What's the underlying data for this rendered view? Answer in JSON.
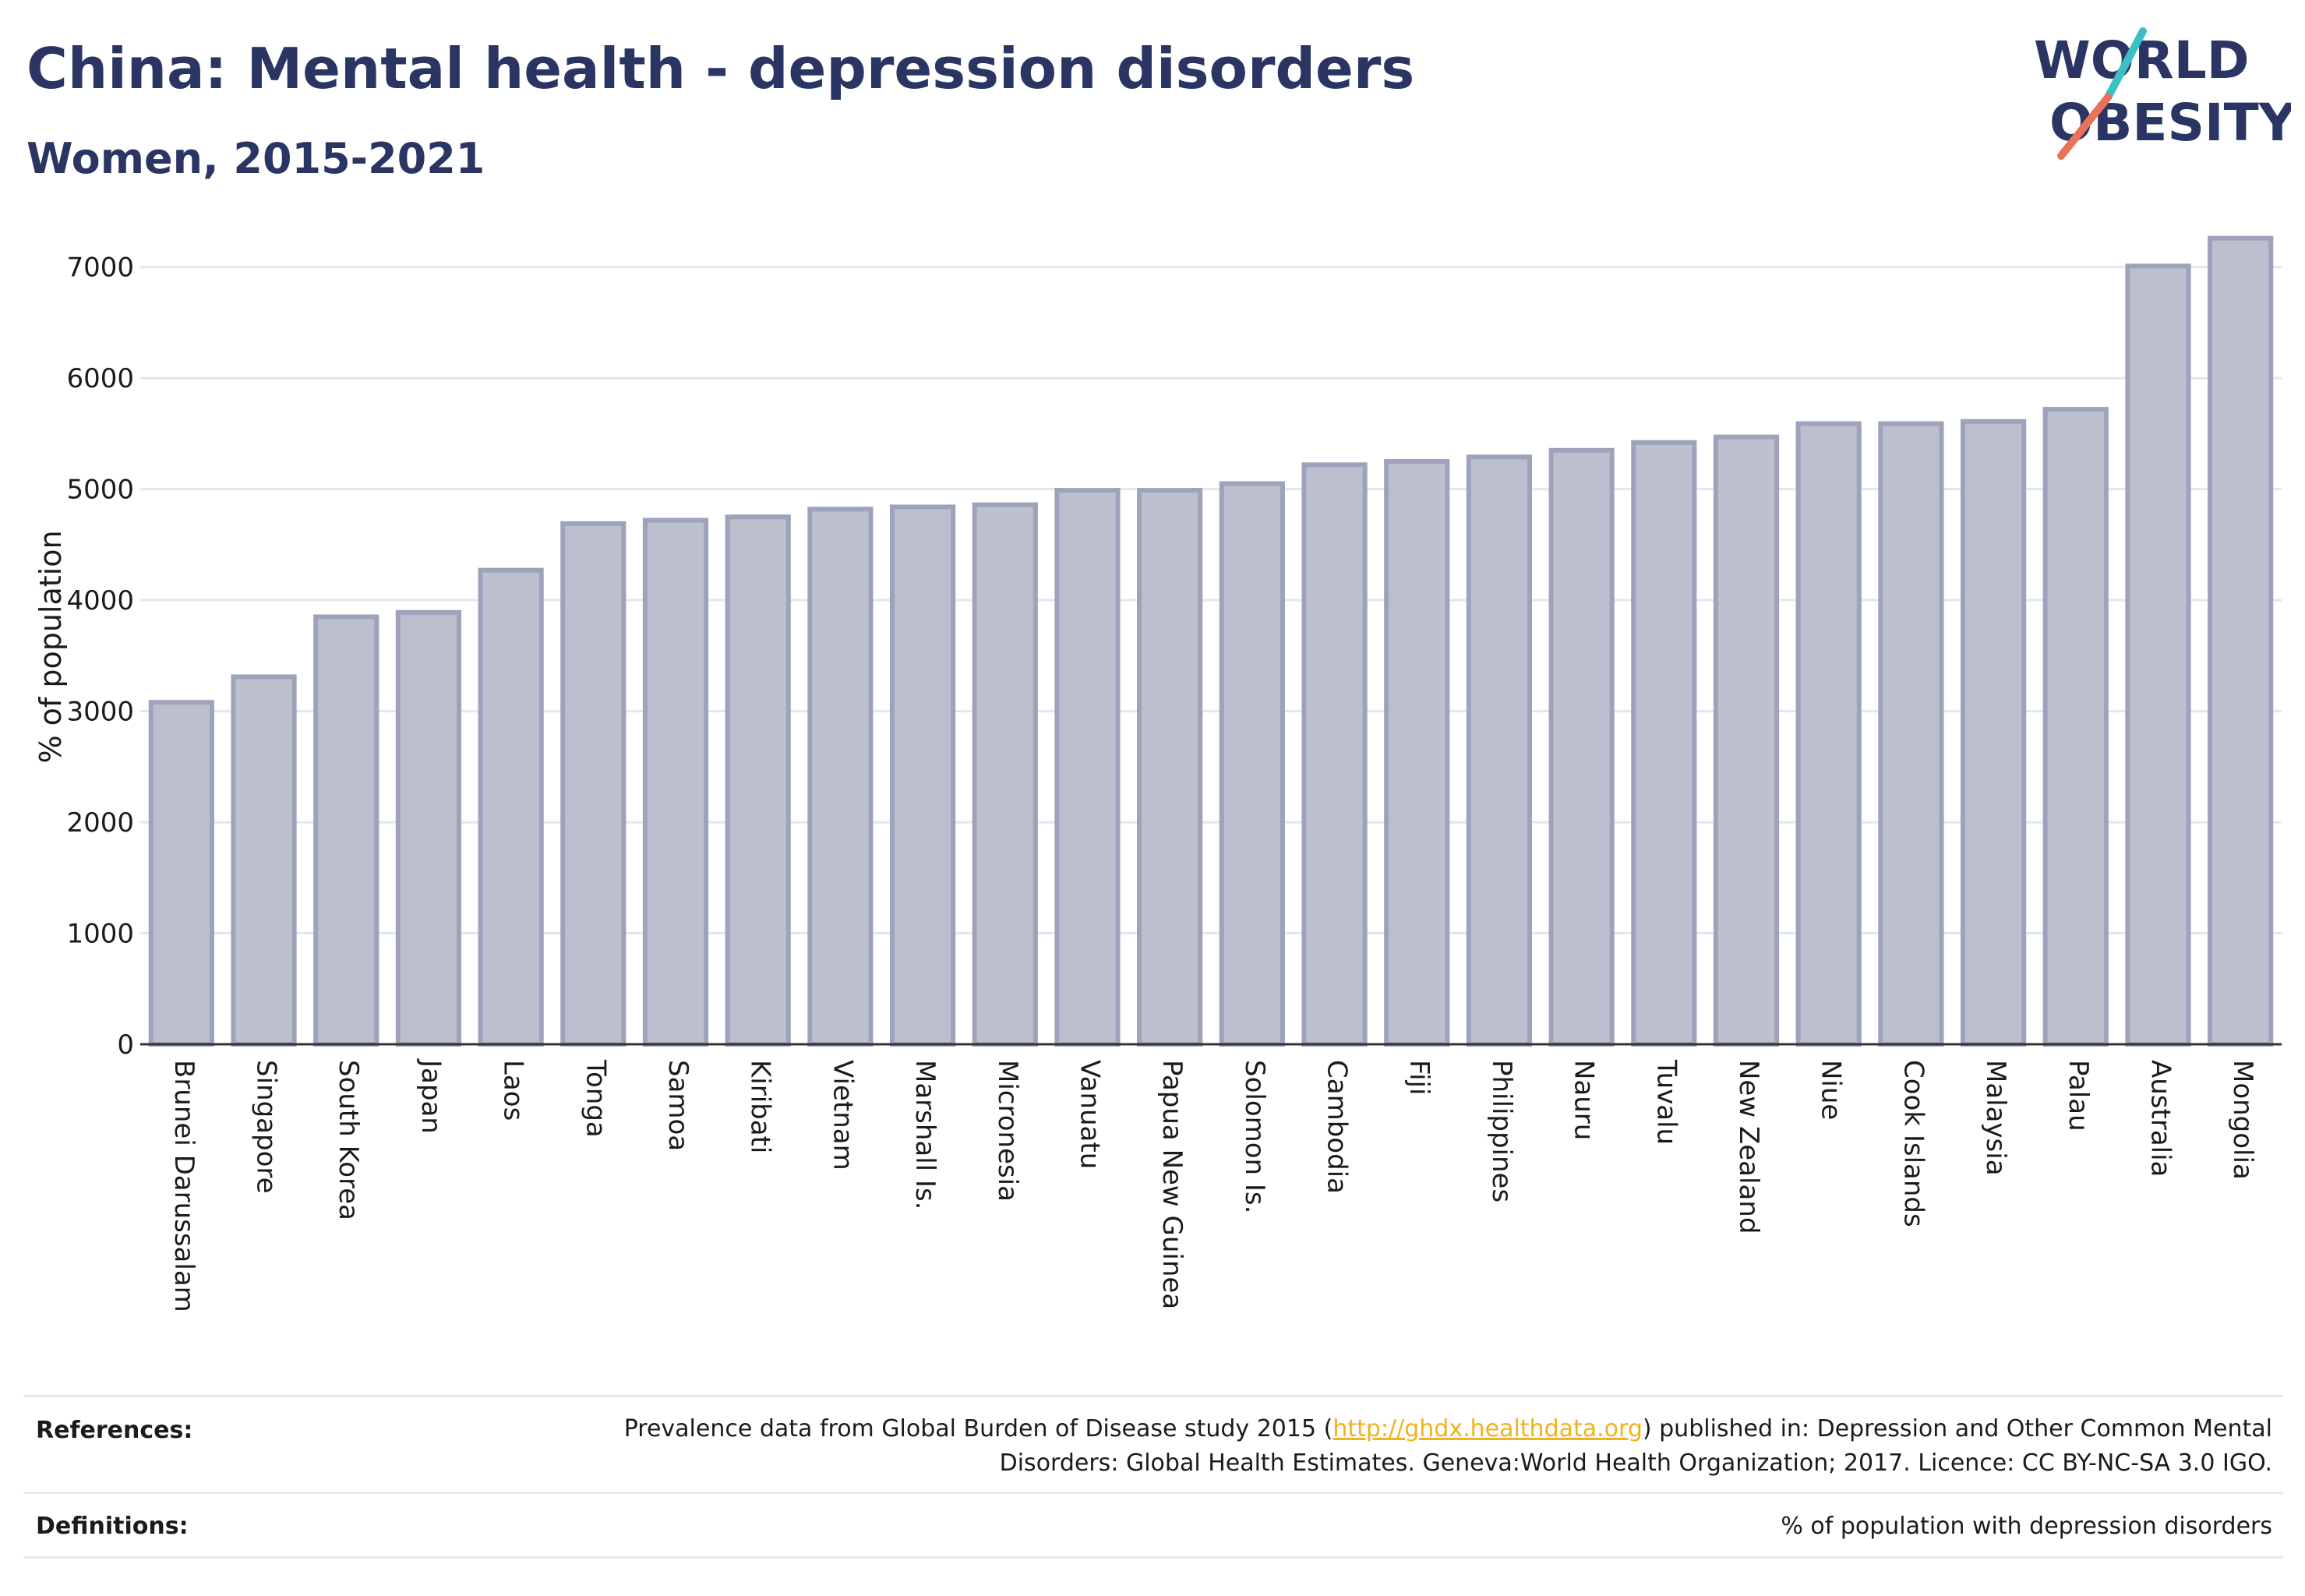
{
  "header": {
    "title": "China: Mental health - depression disorders",
    "subtitle": "Women, 2015-2021"
  },
  "logo": {
    "line1": "WORLD",
    "line2": "OBESITY",
    "colors": {
      "text": "#2b3563",
      "slash_top": "#3cc0c4",
      "slash_bottom": "#e8735a"
    }
  },
  "chart_data": {
    "type": "bar",
    "title": "China: Mental health - depression disorders",
    "subtitle": "Women, 2015-2021",
    "xlabel": "",
    "ylabel": "% of population",
    "ylim": [
      0,
      7300
    ],
    "yticks": [
      0,
      1000,
      2000,
      3000,
      4000,
      5000,
      6000,
      7000
    ],
    "grid": true,
    "bar_color": "#bcc0ce",
    "bar_border_color": "#9ea3bb",
    "categories": [
      "Brunei Darussalam",
      "Singapore",
      "South Korea",
      "Japan",
      "Laos",
      "Tonga",
      "Samoa",
      "Kiribati",
      "Vietnam",
      "Marshall Is.",
      "Micronesia",
      "Vanuatu",
      "Papua New Guinea",
      "Solomon Is.",
      "Cambodia",
      "Fiji",
      "Philippines",
      "Nauru",
      "Tuvalu",
      "New Zealand",
      "Niue",
      "Cook Islands",
      "Malaysia",
      "Palau",
      "Australia",
      "Mongolia"
    ],
    "values": [
      3080,
      3310,
      3850,
      3890,
      4270,
      4690,
      4720,
      4750,
      4820,
      4840,
      4860,
      4990,
      4990,
      5050,
      5220,
      5250,
      5290,
      5350,
      5420,
      5470,
      5590,
      5590,
      5610,
      5720,
      7010,
      7260
    ]
  },
  "footer": {
    "references_label": "References:",
    "references_text_before": "Prevalence data from Global Burden of Disease study 2015 (",
    "references_link": "http://ghdx.healthdata.org",
    "references_text_after": ") published in: Depression and Other Common Mental Disorders: Global Health Estimates. Geneva:World Health Organization; 2017. Licence: CC BY-NC-SA 3.0 IGO.",
    "definitions_label": "Definitions:",
    "definitions_text": "% of population with depression disorders"
  }
}
